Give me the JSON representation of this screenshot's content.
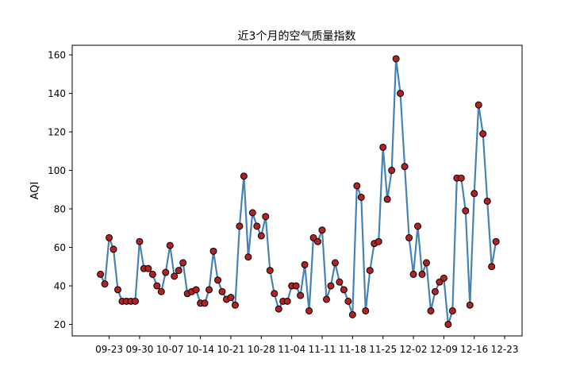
{
  "chart_data": {
    "type": "line",
    "title": "近3个月的空气质量指数",
    "xlabel": "",
    "ylabel": "AQI",
    "ylim": [
      14,
      165
    ],
    "xlim_days": [
      -8.5,
      95
    ],
    "grid": false,
    "colors": {
      "line": "#4682b4",
      "marker_fill": "#b22222",
      "marker_edge": "#000000"
    },
    "yticks": [
      20,
      40,
      60,
      80,
      100,
      120,
      140,
      160
    ],
    "xticks": [
      {
        "day": 0,
        "label": "09-23"
      },
      {
        "day": 7,
        "label": "09-30"
      },
      {
        "day": 14,
        "label": "10-07"
      },
      {
        "day": 21,
        "label": "10-14"
      },
      {
        "day": 28,
        "label": "10-21"
      },
      {
        "day": 35,
        "label": "10-28"
      },
      {
        "day": 42,
        "label": "11-04"
      },
      {
        "day": 49,
        "label": "11-11"
      },
      {
        "day": 56,
        "label": "11-18"
      },
      {
        "day": 63,
        "label": "11-25"
      },
      {
        "day": 70,
        "label": "12-02"
      },
      {
        "day": 77,
        "label": "12-09"
      },
      {
        "day": 84,
        "label": "12-16"
      },
      {
        "day": 91,
        "label": "12-23"
      }
    ],
    "series": [
      {
        "x_days": [
          -2,
          -1,
          0,
          1,
          2,
          3,
          4,
          5,
          6,
          7,
          8,
          9,
          10,
          11,
          12,
          13,
          14,
          15,
          16,
          17,
          18,
          19,
          20,
          21,
          22,
          23,
          24,
          25,
          26,
          27,
          28,
          29,
          30,
          31,
          32,
          33,
          34,
          35,
          36,
          37,
          38,
          39,
          40,
          41,
          42,
          43,
          44,
          45,
          46,
          47,
          48,
          49,
          50,
          51,
          52,
          53,
          54,
          55,
          56,
          57,
          58,
          59,
          60,
          61,
          62,
          63,
          64,
          65,
          66,
          67,
          68,
          69,
          70,
          71,
          72,
          73,
          74,
          75,
          76,
          77,
          78,
          79,
          80,
          81,
          82,
          83,
          84,
          85,
          86,
          87,
          88,
          89
        ],
        "values": [
          46,
          41,
          65,
          59,
          38,
          32,
          32,
          32,
          32,
          63,
          49,
          49,
          46,
          40,
          37,
          47,
          61,
          45,
          48,
          52,
          36,
          37,
          38,
          31,
          31,
          38,
          58,
          43,
          37,
          33,
          34,
          30,
          71,
          97,
          55,
          78,
          71,
          66,
          76,
          48,
          36,
          28,
          32,
          32,
          40,
          40,
          35,
          51,
          27,
          65,
          63,
          69,
          33,
          40,
          52,
          42,
          38,
          32,
          25,
          92,
          86,
          27,
          48,
          62,
          63,
          112,
          85,
          100,
          158,
          140,
          102,
          65,
          46,
          71,
          46,
          52,
          27,
          37,
          42,
          44,
          20,
          27,
          96,
          96,
          79,
          30,
          88,
          134,
          119,
          84,
          50,
          63
        ]
      }
    ]
  }
}
